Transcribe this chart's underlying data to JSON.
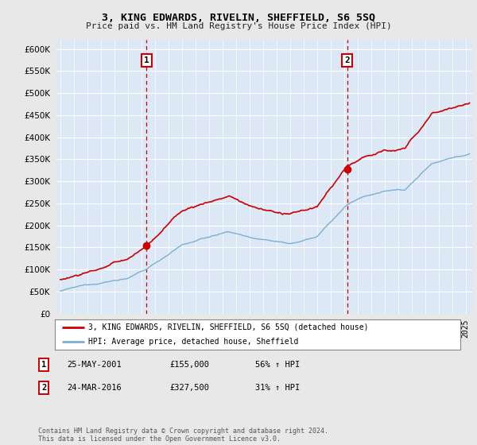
{
  "title": "3, KING EDWARDS, RIVELIN, SHEFFIELD, S6 5SQ",
  "subtitle": "Price paid vs. HM Land Registry's House Price Index (HPI)",
  "ylim": [
    0,
    620000
  ],
  "yticks": [
    0,
    50000,
    100000,
    150000,
    200000,
    250000,
    300000,
    350000,
    400000,
    450000,
    500000,
    550000,
    600000
  ],
  "xlim_start": 1994.7,
  "xlim_end": 2025.5,
  "background_color": "#e8e8e8",
  "plot_bg_color": "#dce8f5",
  "grid_color": "#ffffff",
  "hpi_color": "#7bafd4",
  "price_color": "#cc0000",
  "dashed_line_color": "#cc0000",
  "sale1_x": 2001.39,
  "sale1_y": 155000,
  "sale1_label": "1",
  "sale1_date": "25-MAY-2001",
  "sale1_price": "£155,000",
  "sale1_hpi": "56% ↑ HPI",
  "sale2_x": 2016.23,
  "sale2_y": 327500,
  "sale2_label": "2",
  "sale2_date": "24-MAR-2016",
  "sale2_price": "£327,500",
  "sale2_hpi": "31% ↑ HPI",
  "legend_line1": "3, KING EDWARDS, RIVELIN, SHEFFIELD, S6 5SQ (detached house)",
  "legend_line2": "HPI: Average price, detached house, Sheffield",
  "footnote": "Contains HM Land Registry data © Crown copyright and database right 2024.\nThis data is licensed under the Open Government Licence v3.0."
}
